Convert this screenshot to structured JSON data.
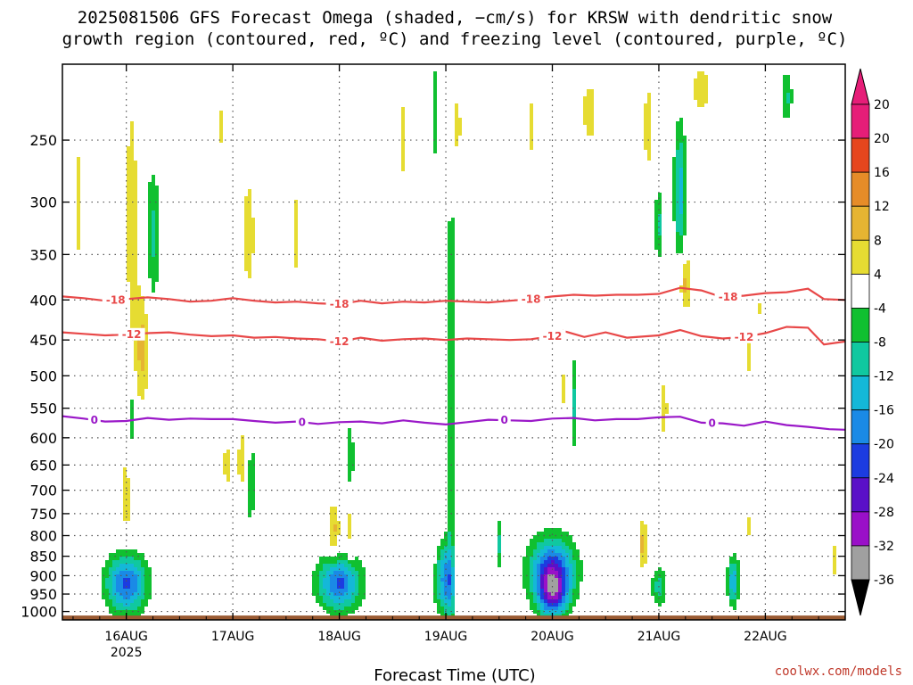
{
  "title_lines": [
    "2025081506 GFS Forecast Omega (shaded, −cm/s) for KRSW with dendritic snow",
    "growth region (contoured, red, ºC) and freezing level (contoured, purple, ºC)"
  ],
  "credit": "coolwx.com/models",
  "chart_data": {
    "type": "heatmap",
    "title": "2025081506 GFS Forecast Omega (shaded, −cm/s) for KRSW with dendritic snow growth region (contoured, red, ºC) and freezing level (contoured, purple, ºC)",
    "xlabel": "Forecast Time (UTC)",
    "ylabel": "",
    "y_scale": "log-pressure (inverted)",
    "ylim_hpa": [
      1025,
      200
    ],
    "xlim_days": [
      15.4,
      22.75
    ],
    "y_ticks": [
      250,
      300,
      350,
      400,
      450,
      500,
      550,
      600,
      650,
      700,
      750,
      800,
      850,
      900,
      950,
      1000
    ],
    "x_ticks": [
      {
        "day": 16,
        "label": "16AUG",
        "sublabel": "2025"
      },
      {
        "day": 17,
        "label": "17AUG",
        "sublabel": ""
      },
      {
        "day": 18,
        "label": "18AUG",
        "sublabel": ""
      },
      {
        "day": 19,
        "label": "19AUG",
        "sublabel": ""
      },
      {
        "day": 20,
        "label": "20AUG",
        "sublabel": ""
      },
      {
        "day": 21,
        "label": "21AUG",
        "sublabel": ""
      },
      {
        "day": 22,
        "label": "22AUG",
        "sublabel": ""
      }
    ],
    "grid": true,
    "colorbar": {
      "levels": [
        -36,
        -32,
        -28,
        -24,
        -20,
        -16,
        -12,
        -8,
        -4,
        4,
        8,
        12,
        16,
        20
      ],
      "colors": [
        "#a0a0a0",
        "#9a10c8",
        "#5a10c8",
        "#1c3ce0",
        "#1a8ae6",
        "#14b8d8",
        "#10c8a0",
        "#10c030",
        "#ffffff",
        "#e6dc32",
        "#e6b432",
        "#e68c28",
        "#e6461e",
        "#e61e78"
      ],
      "under_color": "#000000",
      "over_color": "#e61e78"
    },
    "contours": [
      {
        "name": "-18",
        "color": "#e84848",
        "x": [
          15.4,
          15.6,
          15.8,
          16.0,
          16.2,
          16.4,
          16.6,
          16.8,
          17.0,
          17.2,
          17.4,
          17.6,
          17.8,
          18.0,
          18.2,
          18.4,
          18.6,
          18.8,
          19.0,
          19.2,
          19.4,
          19.6,
          19.8,
          20.0,
          20.2,
          20.4,
          20.6,
          20.8,
          21.0,
          21.2,
          21.4,
          21.6,
          21.8,
          22.0,
          22.2,
          22.4,
          22.55,
          22.75
        ],
        "p": [
          396,
          398,
          401,
          399,
          397,
          399,
          402,
          401,
          398,
          401,
          403,
          402,
          404,
          405,
          401,
          404,
          402,
          403,
          401,
          402,
          403,
          401,
          399,
          396,
          394,
          395,
          394,
          394,
          393,
          386,
          389,
          397,
          395,
          392,
          391,
          387,
          399,
          400
        ],
        "labels": [
          {
            "x": 15.9,
            "text": "-18"
          },
          {
            "x": 18.0,
            "text": "-18"
          },
          {
            "x": 19.8,
            "text": "-18"
          },
          {
            "x": 21.65,
            "text": "-18"
          }
        ]
      },
      {
        "name": "-12",
        "color": "#e84848",
        "x": [
          15.4,
          15.6,
          15.8,
          16.0,
          16.2,
          16.4,
          16.6,
          16.8,
          17.0,
          17.2,
          17.4,
          17.6,
          17.8,
          18.0,
          18.2,
          18.4,
          18.6,
          18.8,
          19.0,
          19.2,
          19.4,
          19.6,
          19.8,
          20.0,
          20.1,
          20.3,
          20.5,
          20.7,
          21.0,
          21.2,
          21.4,
          21.6,
          21.8,
          22.0,
          22.2,
          22.4,
          22.55,
          22.75
        ],
        "p": [
          440,
          442,
          444,
          443,
          441,
          440,
          443,
          445,
          444,
          447,
          446,
          448,
          449,
          452,
          447,
          451,
          449,
          448,
          450,
          448,
          449,
          450,
          449,
          445,
          438,
          446,
          440,
          447,
          444,
          437,
          445,
          448,
          446,
          441,
          433,
          434,
          456,
          452
        ],
        "labels": [
          {
            "x": 16.05,
            "text": "-12"
          },
          {
            "x": 18.0,
            "text": "-12"
          },
          {
            "x": 20.0,
            "text": "-12"
          },
          {
            "x": 21.8,
            "text": "-12"
          }
        ]
      },
      {
        "name": "0",
        "color": "#9a18c8",
        "x": [
          15.4,
          15.6,
          15.8,
          16.0,
          16.2,
          16.4,
          16.6,
          16.8,
          17.0,
          17.2,
          17.4,
          17.6,
          17.8,
          18.0,
          18.2,
          18.4,
          18.6,
          18.8,
          19.0,
          19.2,
          19.4,
          19.6,
          19.8,
          20.0,
          20.2,
          20.4,
          20.6,
          20.8,
          21.0,
          21.2,
          21.4,
          21.6,
          21.8,
          22.0,
          22.2,
          22.4,
          22.6,
          22.75
        ],
        "p": [
          563,
          567,
          572,
          571,
          566,
          569,
          567,
          568,
          568,
          571,
          574,
          572,
          576,
          573,
          572,
          575,
          570,
          574,
          577,
          573,
          569,
          570,
          571,
          567,
          566,
          570,
          568,
          568,
          565,
          564,
          574,
          575,
          579,
          572,
          578,
          581,
          585,
          586
        ],
        "labels": [
          {
            "x": 15.7,
            "text": "0"
          },
          {
            "x": 17.65,
            "text": "0"
          },
          {
            "x": 19.55,
            "text": "0"
          },
          {
            "x": 21.5,
            "text": "0"
          }
        ]
      }
    ],
    "omega_cells": [
      {
        "x": 16.0,
        "p": 920,
        "sx": 0.13,
        "sy": 0.06,
        "peak": -22
      },
      {
        "x": 18.0,
        "p": 920,
        "sx": 0.14,
        "sy": 0.055,
        "peak": -21
      },
      {
        "x": 19.0,
        "p": 910,
        "sx": 0.07,
        "sy": 0.07,
        "peak": -18
      },
      {
        "x": 19.05,
        "p": 560,
        "sx": 0.03,
        "sy": 0.5,
        "peak": -9
      },
      {
        "x": 20.0,
        "p": 890,
        "sx": 0.15,
        "sy": 0.07,
        "peak": -23
      },
      {
        "x": 20.0,
        "p": 950,
        "sx": 0.09,
        "sy": 0.05,
        "peak": -18
      },
      {
        "x": 21.0,
        "p": 930,
        "sx": 0.05,
        "sy": 0.04,
        "peak": -10
      },
      {
        "x": 21.2,
        "p": 290,
        "sx": 0.04,
        "sy": 0.14,
        "peak": -14
      },
      {
        "x": 21.7,
        "p": 915,
        "sx": 0.04,
        "sy": 0.05,
        "peak": -15
      },
      {
        "x": 16.25,
        "p": 330,
        "sx": 0.05,
        "sy": 0.14,
        "peak": -9
      },
      {
        "x": 17.15,
        "p": 680,
        "sx": 0.05,
        "sy": 0.1,
        "peak": -9
      },
      {
        "x": 18.1,
        "p": 640,
        "sx": 0.03,
        "sy": 0.08,
        "peak": -8
      },
      {
        "x": 16.05,
        "p": 570,
        "sx": 0.03,
        "sy": 0.08,
        "peak": -8
      },
      {
        "x": 20.2,
        "p": 540,
        "sx": 0.02,
        "sy": 0.1,
        "peak": -9
      },
      {
        "x": 21.0,
        "p": 320,
        "sx": 0.03,
        "sy": 0.08,
        "peak": -9
      },
      {
        "x": 22.2,
        "p": 220,
        "sx": 0.04,
        "sy": 0.05,
        "peak": -9
      },
      {
        "x": 18.9,
        "p": 230,
        "sx": 0.02,
        "sy": 0.1,
        "peak": -8
      },
      {
        "x": 19.5,
        "p": 820,
        "sx": 0.02,
        "sy": 0.05,
        "peak": -9
      },
      {
        "x": 16.05,
        "p": 310,
        "sx": 0.05,
        "sy": 0.3,
        "peak": 6
      },
      {
        "x": 16.15,
        "p": 460,
        "sx": 0.05,
        "sy": 0.12,
        "peak": 9
      },
      {
        "x": 16.0,
        "p": 710,
        "sx": 0.06,
        "sy": 0.14,
        "peak": 5
      },
      {
        "x": 15.55,
        "p": 300,
        "sx": 0.03,
        "sy": 0.15,
        "peak": 6
      },
      {
        "x": 16.9,
        "p": 240,
        "sx": 0.03,
        "sy": 0.08,
        "peak": 5
      },
      {
        "x": 17.15,
        "p": 330,
        "sx": 0.05,
        "sy": 0.15,
        "peak": 6
      },
      {
        "x": 17.1,
        "p": 650,
        "sx": 0.04,
        "sy": 0.09,
        "peak": 10
      },
      {
        "x": 16.95,
        "p": 650,
        "sx": 0.04,
        "sy": 0.05,
        "peak": 6
      },
      {
        "x": 17.6,
        "p": 330,
        "sx": 0.04,
        "sy": 0.15,
        "peak": 5
      },
      {
        "x": 17.95,
        "p": 790,
        "sx": 0.04,
        "sy": 0.06,
        "peak": 9
      },
      {
        "x": 18.1,
        "p": 780,
        "sx": 0.03,
        "sy": 0.08,
        "peak": 6
      },
      {
        "x": 18.6,
        "p": 250,
        "sx": 0.03,
        "sy": 0.14,
        "peak": 5
      },
      {
        "x": 19.1,
        "p": 240,
        "sx": 0.04,
        "sy": 0.08,
        "peak": 6
      },
      {
        "x": 18.85,
        "p": 870,
        "sx": 0.03,
        "sy": 0.05,
        "peak": 5
      },
      {
        "x": 19.1,
        "p": 880,
        "sx": 0.03,
        "sy": 0.06,
        "peak": 6
      },
      {
        "x": 19.8,
        "p": 240,
        "sx": 0.04,
        "sy": 0.1,
        "peak": 5
      },
      {
        "x": 20.1,
        "p": 520,
        "sx": 0.03,
        "sy": 0.07,
        "peak": 5
      },
      {
        "x": 20.35,
        "p": 230,
        "sx": 0.06,
        "sy": 0.08,
        "peak": 6
      },
      {
        "x": 20.9,
        "p": 240,
        "sx": 0.05,
        "sy": 0.15,
        "peak": 5
      },
      {
        "x": 21.05,
        "p": 550,
        "sx": 0.04,
        "sy": 0.1,
        "peak": 5
      },
      {
        "x": 21.25,
        "p": 380,
        "sx": 0.04,
        "sy": 0.06,
        "peak": 10
      },
      {
        "x": 20.85,
        "p": 820,
        "sx": 0.03,
        "sy": 0.05,
        "peak": 10
      },
      {
        "x": 21.4,
        "p": 215,
        "sx": 0.08,
        "sy": 0.06,
        "peak": 6
      },
      {
        "x": 21.85,
        "p": 780,
        "sx": 0.03,
        "sy": 0.04,
        "peak": 5
      },
      {
        "x": 21.85,
        "p": 470,
        "sx": 0.03,
        "sy": 0.05,
        "peak": 6
      },
      {
        "x": 22.65,
        "p": 860,
        "sx": 0.03,
        "sy": 0.05,
        "peak": 6
      },
      {
        "x": 21.95,
        "p": 410,
        "sx": 0.02,
        "sy": 0.03,
        "peak": 5
      }
    ]
  }
}
